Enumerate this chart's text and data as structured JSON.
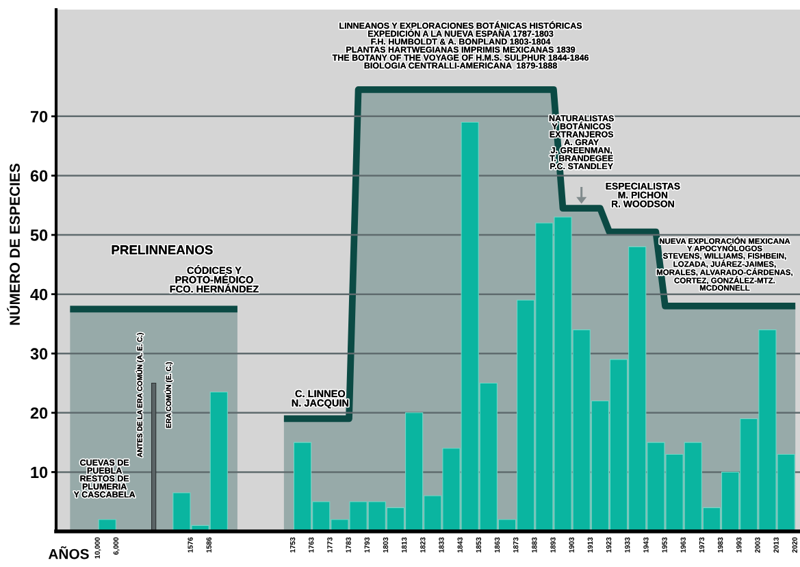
{
  "chart_data": {
    "type": "bar",
    "xlabel": "AÑOS",
    "ylabel": "NÚMERO DE ESPECIES",
    "categories": [
      null,
      null,
      null,
      null,
      "10,000",
      null,
      "6,000",
      null,
      null,
      null,
      null,
      null,
      null,
      null,
      "1576",
      null,
      "1586",
      null,
      null,
      null,
      null,
      null,
      null,
      null,
      null,
      "1753",
      null,
      "1763",
      null,
      "1773",
      null,
      "1783",
      null,
      "1793",
      null,
      "1803",
      null,
      "1813",
      null,
      "1823",
      null,
      "1833",
      null,
      "1843",
      null,
      "1853",
      null,
      "1863",
      null,
      "1873",
      null,
      "1883",
      null,
      "1893",
      null,
      "1903",
      null,
      "1913",
      null,
      "1923",
      null,
      "1933",
      null,
      "1943",
      null,
      "1953",
      null,
      "1963",
      null,
      "1973",
      null,
      "1983",
      null,
      "1993",
      null,
      "2003",
      null,
      "2013",
      null,
      "2020"
    ],
    "series": [
      {
        "type": "area",
        "color": "#0b4a44",
        "values": [
          null,
          37.5,
          37.5,
          37.5,
          37.5,
          37.5,
          37.5,
          37.5,
          37.5,
          37.5,
          37.5,
          37.5,
          37.5,
          37.5,
          37.5,
          37.5,
          37.5,
          37.5,
          37.5,
          37.5,
          null,
          null,
          null,
          null,
          19,
          19,
          19,
          19,
          19,
          19,
          19,
          19,
          74.5,
          74.5,
          74.5,
          74.5,
          74.5,
          74.5,
          74.5,
          74.5,
          74.5,
          74.5,
          74.5,
          74.5,
          74.5,
          74.5,
          74.5,
          74.5,
          74.5,
          74.5,
          74.5,
          74.5,
          74.5,
          74.5,
          54.5,
          54.5,
          54.5,
          54.5,
          54.5,
          50.5,
          50.5,
          50.5,
          50.5,
          50.5,
          50.5,
          38,
          38,
          38,
          38,
          38,
          38,
          38,
          38,
          38,
          38,
          38,
          38,
          38,
          38,
          38
        ]
      },
      {
        "color": "#5b6466",
        "values": [
          null,
          null,
          null,
          null,
          null,
          null,
          null,
          null,
          null,
          null,
          25,
          null,
          null,
          null,
          null,
          null,
          null,
          null,
          null,
          null,
          null,
          null,
          null,
          null,
          null,
          null,
          null,
          null,
          null,
          null,
          null,
          null,
          null,
          null,
          null,
          null,
          null,
          null,
          null,
          null,
          null,
          null,
          null,
          null,
          null,
          null,
          null,
          null,
          null,
          null,
          null,
          null,
          null,
          null,
          null,
          null,
          null,
          null,
          null,
          null,
          null,
          null,
          null,
          null,
          null,
          null,
          null,
          null,
          null,
          null,
          null,
          null,
          null,
          null,
          null,
          null,
          null,
          null,
          null,
          null
        ]
      },
      {
        "color": "#0ab5a0",
        "values": [
          null,
          null,
          null,
          null,
          null,
          2,
          null,
          null,
          null,
          null,
          null,
          null,
          null,
          6.5,
          null,
          1,
          null,
          23.5,
          null,
          null,
          null,
          null,
          null,
          null,
          null,
          null,
          15,
          null,
          5,
          null,
          2,
          null,
          5,
          null,
          5,
          null,
          4,
          null,
          20,
          null,
          6,
          null,
          14,
          null,
          69,
          null,
          25,
          null,
          2,
          null,
          39,
          null,
          52,
          null,
          53,
          null,
          34,
          null,
          22,
          null,
          29,
          null,
          48,
          null,
          15,
          null,
          13,
          null,
          15,
          null,
          4,
          null,
          10,
          null,
          19,
          null,
          34,
          null,
          13,
          null
        ]
      }
    ],
    "ylim": [
      0,
      88
    ],
    "yticks": [
      10,
      20,
      30,
      40,
      50,
      60,
      70
    ],
    "grid": "y",
    "annotations": [
      "PRELINNEANOS",
      "CÓDICES Y\nPROTO-MÉDICO\nFCO. HERNÁNDEZ",
      "CUEVAS DE\nPUEBLA\nRESTOS DE\nPLUMERIA\nY CASCABELA",
      "ANTES DE LA ERA COMÚN (A. E. C.)",
      "ERA COMÚN (E. C.)",
      "C. LINNEO\nN. JACQUIN",
      "LINNEANOS Y EXPLORACIONES BOTÁNICAS HISTÓRICAS\nEXPEDICIÓN A LA NUEVA ESPAÑA 1787-1803\nF.H. HUMBOLDT & A. BONPLAND 1803-1804\nPLANTAS HARTWEGIANAS IMPRIMIS MEXICANAS 1839\nTHE BOTANY OF THE VOYAGE OF H.M.S. SULPHUR 1844-1846\nBIOLOGIA CENTRALLI-AMERICANA  1879-1888",
      "NATURALISTAS\nY BOTÁNICOS\nEXTRANJEROS\nA. GRAY\nJ. GREENMAN,\nT. BRANDEGEE\nP.C. STANDLEY",
      "ESPECIALISTAS\nM. PICHON\nR. WOODSON",
      "NUEVA EXPLORACIÓN MEXICANA\nY APOCYNÓLOGOS\nSTEVENS, WILLIAMS, FISHBEIN,\nLOZADA, JUÁREZ-JAIMES,\nMORALES, ALVARADO-CÁRDENAS,\nCORTEZ, GONZÁLEZ-MTZ.\nMCDONNELL"
    ]
  }
}
